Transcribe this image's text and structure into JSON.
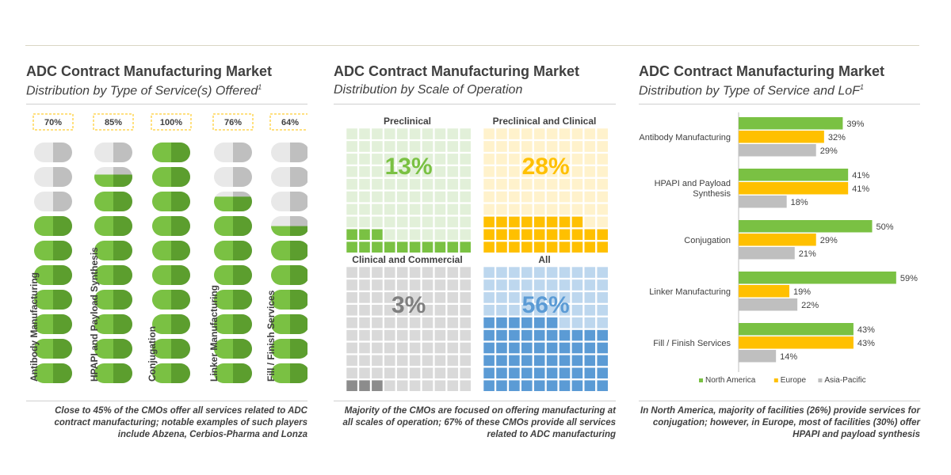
{
  "colors": {
    "green": "#7ac143",
    "greenDark": "#5c9e2e",
    "gray": "#bfbfbf",
    "grayDark": "#8c8c8c",
    "yellow": "#ffc000",
    "blue": "#5b9bd5",
    "cellGreenBg": "#e2f0d9",
    "cellYellowBg": "#fff2cc",
    "cellGrayBg": "#d9d9d9",
    "cellBlueBg": "#bdd7ee"
  },
  "panels": [
    {
      "title": "ADC Contract Manufacturing Market",
      "subtitle": "Distribution by Type of Service(s) Offered",
      "sup": "1",
      "note": "Close to 45% of the CMOs offer all services  related to ADC contract manufacturing;  notable examples of such players include Abzena, Cerbios-Pharma  and Lonza"
    },
    {
      "title": "ADC Contract Manufacturing Market",
      "subtitle": "Distribution by Scale of Operation",
      "sup": "",
      "note": "Majority of the CMOs are focused  on offering manufacturing at all scales  of operation; 67% of these CMOs provide all services  related to ADC manufacturing"
    },
    {
      "title": "ADC Contract Manufacturing Market",
      "subtitle": "Distribution by Type of Service and LoF",
      "sup": "1",
      "note": "In North America, majority of facilities (26%) provide services for conjugation; however, in Europe, most of facilities (30%) offer HPAPI and payload synthesis"
    }
  ],
  "chart_data": [
    {
      "type": "bar",
      "title": "Distribution by Type of Service(s) Offered",
      "categories": [
        "Antibody Manufacturing",
        "HPAPI and Payload Synthesis",
        "Conjugation",
        "Linker Manufacturing",
        "Fill / Finish Services"
      ],
      "values": [
        70,
        85,
        100,
        76,
        64
      ],
      "labels": [
        "70%",
        "85%",
        "100%",
        "76%",
        "64%"
      ],
      "ylim": [
        0,
        100
      ]
    },
    {
      "type": "heatmap",
      "title": "Distribution by Scale of Operation",
      "categories": [
        "Preclinical",
        "Preclinical and Clinical",
        "Clinical and Commercial",
        "All"
      ],
      "values": [
        13,
        28,
        3,
        56
      ],
      "labels": [
        "13%",
        "28%",
        "3%",
        "56%"
      ]
    },
    {
      "type": "bar",
      "title": "Distribution by Type of Service and LoF",
      "categories": [
        "Antibody Manufacturing",
        "HPAPI and Payload Synthesis",
        "Conjugation",
        "Linker Manufacturing",
        "Fill / Finish Services"
      ],
      "series": [
        {
          "name": "North America",
          "values": [
            39,
            41,
            50,
            59,
            43
          ],
          "labels": [
            "39%",
            "41%",
            "50%",
            "59%",
            "43%"
          ]
        },
        {
          "name": "Europe",
          "values": [
            32,
            41,
            29,
            19,
            43
          ],
          "labels": [
            "32%",
            "41%",
            "29%",
            "19%",
            "43%"
          ]
        },
        {
          "name": "Asia-Pacific",
          "values": [
            29,
            18,
            21,
            22,
            14
          ],
          "labels": [
            "29%",
            "18%",
            "21%",
            "22%",
            "14%"
          ]
        }
      ],
      "legend": "bottom"
    }
  ]
}
